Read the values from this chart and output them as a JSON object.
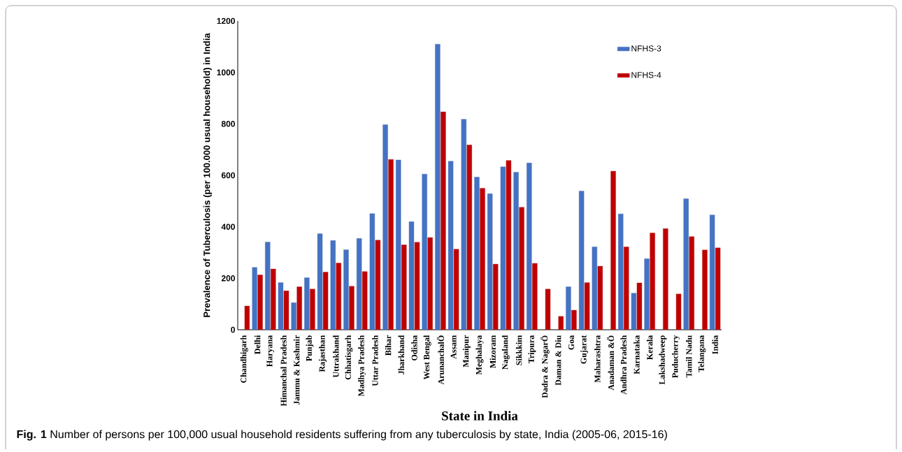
{
  "chart_data": {
    "type": "bar",
    "xlabel": "State in India",
    "ylabel": "Prevalence of Tuberculosis (per 100.000 usual household) in India",
    "categories": [
      "Chandhigarh",
      "Delhi",
      "Haryana",
      "Himanchal Pradesh",
      "Jammu & Kashmir",
      "Punjab",
      "Rajasthan",
      "Uttrakhand",
      "Chhatisgarh",
      "Madhya Pradesh",
      "Uttar Pradesh",
      "Bihar",
      "Jharkhand",
      "Odisha",
      "West Bengal",
      "ArunanchalÖ",
      "Assam",
      "Manipur",
      "Meghalaya",
      "Mizoram",
      "Nagaland",
      "Sikkkim",
      "Tripura",
      "Dadra & NagarÖ",
      "Daman & Diu",
      "Goa",
      "Gujarat",
      "Maharashtra",
      "Anadaman &Ö",
      "Andhra Pradesh",
      "Karnataka",
      "Kerala",
      "Lakshadweep",
      "Puducherry",
      "Tamil Nadu",
      "Telangana",
      "India"
    ],
    "series": [
      {
        "name": "NFHS-3",
        "color": "#4472c4",
        "values": [
          null,
          242,
          341,
          183,
          105,
          202,
          373,
          347,
          311,
          355,
          451,
          797,
          660,
          420,
          605,
          1110,
          655,
          818,
          593,
          529,
          633,
          612,
          648,
          null,
          null,
          167,
          539,
          322,
          null,
          450,
          142,
          276,
          null,
          null,
          509,
          null,
          446
        ]
      },
      {
        "name": "NFHS-4",
        "color": "#c00000",
        "values": [
          92,
          213,
          236,
          151,
          167,
          158,
          224,
          259,
          169,
          226,
          348,
          662,
          330,
          340,
          358,
          847,
          313,
          718,
          550,
          255,
          658,
          476,
          258,
          158,
          52,
          76,
          183,
          247,
          616,
          322,
          182,
          376,
          393,
          139,
          362,
          310,
          318
        ]
      }
    ],
    "ylim": [
      0,
      1200
    ],
    "yticks": [
      0,
      200,
      400,
      600,
      800,
      1000,
      1200
    ],
    "legend": "top right",
    "annotations": [
      "**Fig. 1** Number of persons per 100,000 usual household residents suffering from any tuberculosis by state, India (2005-06, 2015-16)"
    ]
  }
}
